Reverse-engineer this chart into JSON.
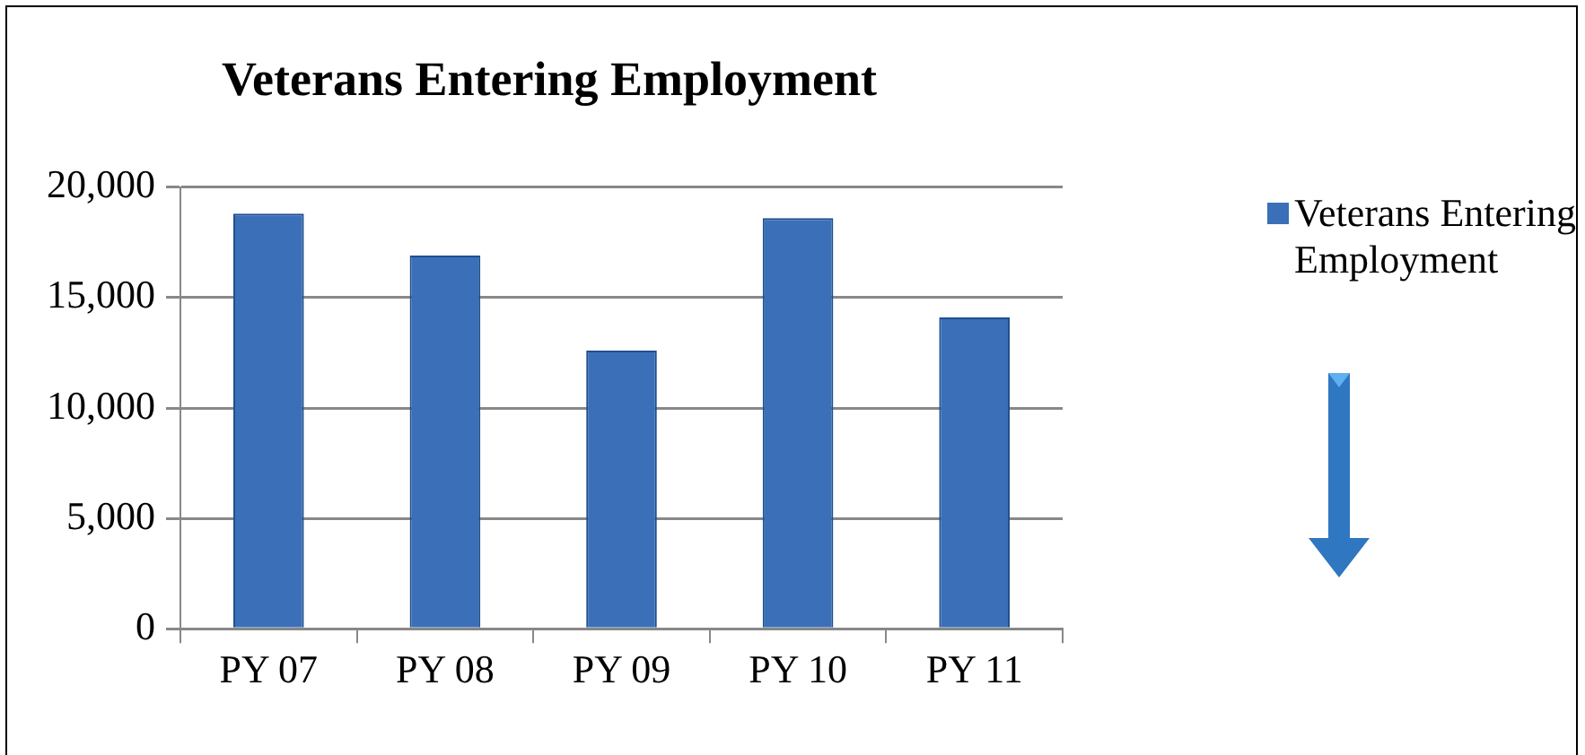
{
  "chart_data": {
    "type": "bar",
    "title": "Veterans Entering Employment",
    "categories": [
      "PY 07",
      "PY 08",
      "PY 09",
      "PY 10",
      "PY 11"
    ],
    "series": [
      {
        "name": "Veterans Entering Employment",
        "color": "#3b70b8",
        "values": [
          18800,
          16900,
          12600,
          18600,
          14100
        ]
      }
    ],
    "ylim": [
      0,
      20000
    ],
    "yticks": [
      {
        "value": 0,
        "label": "0"
      },
      {
        "value": 5000,
        "label": "5,000"
      },
      {
        "value": 10000,
        "label": "10,000"
      },
      {
        "value": 15000,
        "label": "15,000"
      },
      {
        "value": 20000,
        "label": "20,000"
      }
    ],
    "grid": "y",
    "legend": "top right"
  }
}
